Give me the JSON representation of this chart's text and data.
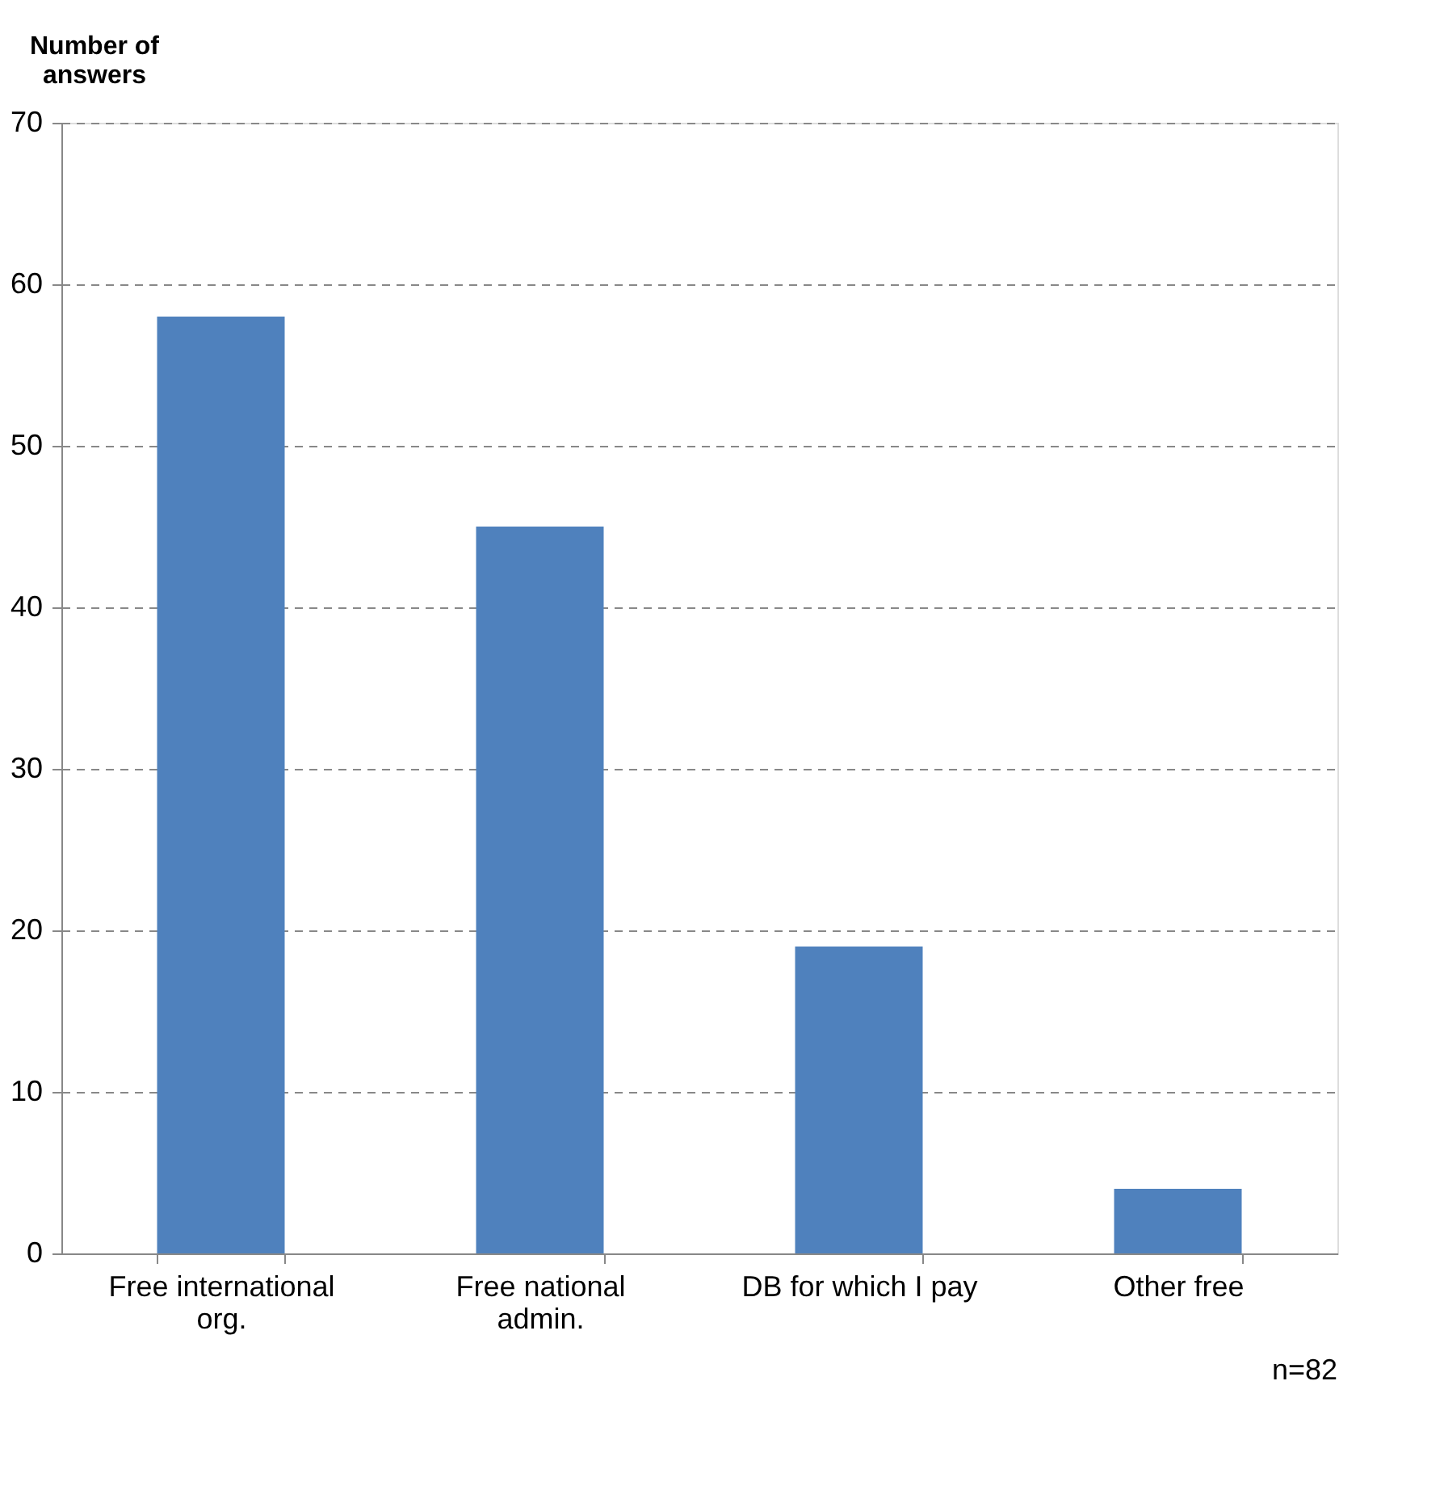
{
  "chart_data": {
    "type": "bar",
    "ylabel": "Number of answers",
    "categories": [
      "Free international org.",
      "Free national admin.",
      "DB for which I pay",
      "Other free"
    ],
    "values": [
      58,
      45,
      19,
      4
    ],
    "color": "#4f81bd",
    "ylim": [
      0,
      70
    ],
    "yticks": [
      0,
      10,
      20,
      30,
      40,
      50,
      60,
      70
    ],
    "grid": "y",
    "annotations": [
      "n=82"
    ]
  }
}
